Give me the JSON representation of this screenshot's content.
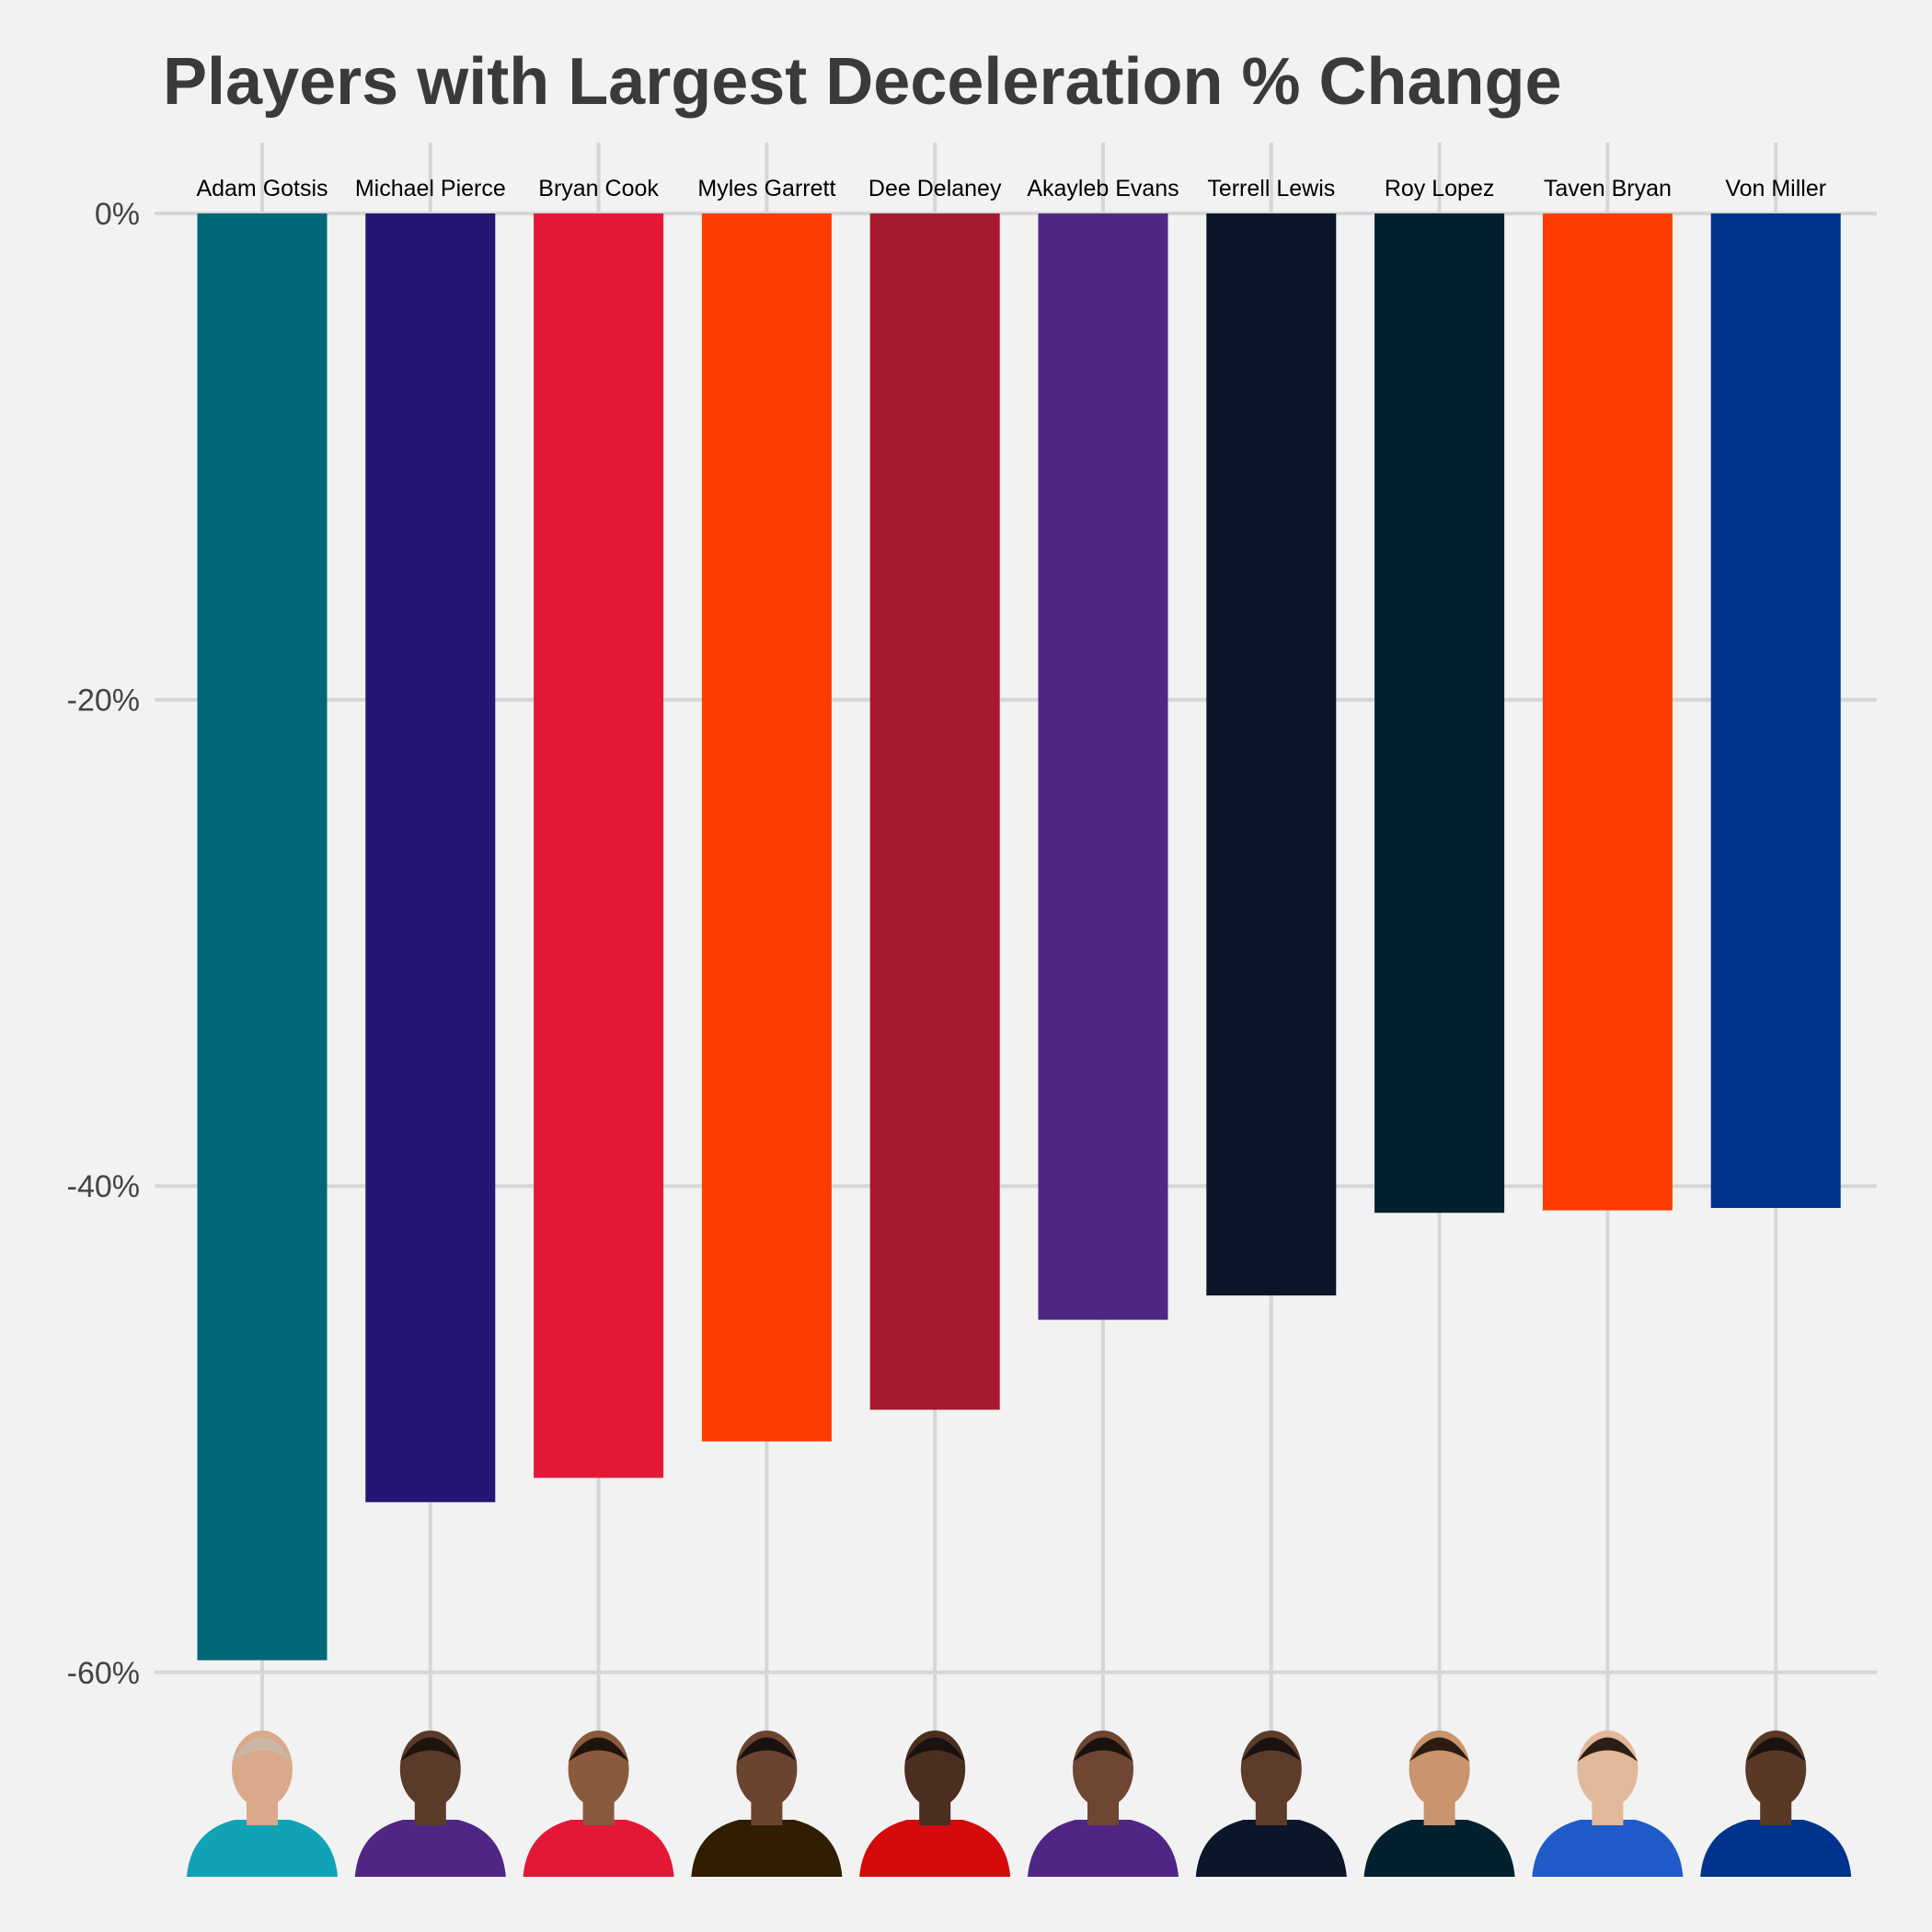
{
  "chart_data": {
    "type": "bar",
    "title": "Players with Largest Deceleration % Change",
    "xlabel": "",
    "ylabel": "",
    "ylim": [
      -63,
      3
    ],
    "yticks": [
      0,
      -20,
      -40,
      -60
    ],
    "ytick_labels": [
      "0%",
      "-20%",
      "-40%",
      "-60%"
    ],
    "grid": true,
    "categories": [
      "Adam Gotsis",
      "Michael Pierce",
      "Bryan Cook",
      "Myles Garrett",
      "Dee Delaney",
      "Akayleb Evans",
      "Terrell Lewis",
      "Roy Lopez",
      "Taven Bryan",
      "Von Miller"
    ],
    "values": [
      -59.5,
      -53.0,
      -52.0,
      -50.5,
      -49.2,
      -45.5,
      -44.5,
      -41.1,
      -41.0,
      -40.9
    ],
    "colors": [
      "#006778",
      "#241773",
      "#E31837",
      "#FF3C00",
      "#A71930",
      "#4F2683",
      "#0B162A",
      "#03202F",
      "#FF3C00",
      "#00338D"
    ],
    "player_photos": [
      {
        "jersey": "#0FA3B5",
        "skin": "#D9A98A",
        "hair": "#C9B8A6"
      },
      {
        "jersey": "#4F2683",
        "skin": "#5A3A28",
        "hair": "#1E140E"
      },
      {
        "jersey": "#E31837",
        "skin": "#8A5A3C",
        "hair": "#1E140E"
      },
      {
        "jersey": "#311D00",
        "skin": "#6B4430",
        "hair": "#1A1210"
      },
      {
        "jersey": "#D50A0A",
        "skin": "#4A2E20",
        "hair": "#1A1210"
      },
      {
        "jersey": "#4F2683",
        "skin": "#6E4631",
        "hair": "#1A1210"
      },
      {
        "jersey": "#0B162A",
        "skin": "#5E3C2A",
        "hair": "#1A1210"
      },
      {
        "jersey": "#03202F",
        "skin": "#C9946E",
        "hair": "#2A1C12"
      },
      {
        "jersey": "#1F5BC9",
        "skin": "#E2B89A",
        "hair": "#2B1E16"
      },
      {
        "jersey": "#00338D",
        "skin": "#5A3826",
        "hair": "#1A1210"
      }
    ]
  }
}
